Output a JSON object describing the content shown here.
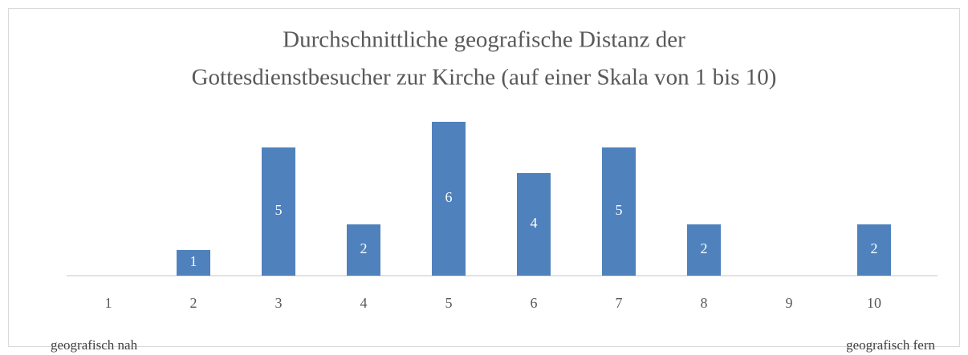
{
  "chart_data": {
    "type": "bar",
    "title": [
      "Durchschnittliche geografische Distanz der",
      "Gottesdienstbesucher zur Kirche (auf einer Skala von 1 bis 10)"
    ],
    "categories": [
      "1",
      "2",
      "3",
      "4",
      "5",
      "6",
      "7",
      "8",
      "9",
      "10"
    ],
    "values": [
      0,
      1,
      5,
      2,
      6,
      4,
      5,
      2,
      0,
      2
    ],
    "color": "#4f81bd",
    "ylim": [
      0,
      7
    ],
    "annotations": [
      "geografisch nah",
      "geografisch fern"
    ]
  }
}
